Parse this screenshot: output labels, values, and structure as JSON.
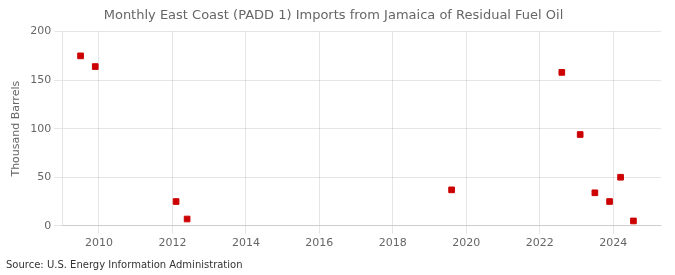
{
  "chart_data": {
    "type": "scatter",
    "title": "Monthly East Coast (PADD 1) Imports from Jamaica of Residual Fuel Oil",
    "ylabel": "Thousand Barrels",
    "annotation": "Source: U.S. Energy Information Administration",
    "x": [
      2009.5,
      2009.9,
      2012.1,
      2012.4,
      2019.6,
      2022.6,
      2023.1,
      2023.5,
      2023.9,
      2024.2,
      2024.55
    ],
    "values": [
      175,
      164,
      25,
      7,
      37,
      158,
      94,
      34,
      25,
      50,
      5
    ],
    "color": "#cc0000",
    "marker": "square",
    "xlim": [
      2009.0,
      2025.3
    ],
    "ylim": [
      0,
      200
    ],
    "xticks": [
      2010,
      2012,
      2014,
      2016,
      2018,
      2020,
      2022,
      2024
    ],
    "yticks": [
      0,
      50,
      100,
      150,
      200
    ],
    "grid": true
  }
}
